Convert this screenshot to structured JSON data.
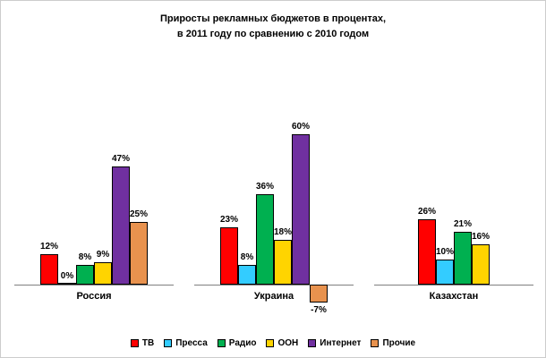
{
  "title": {
    "line1": "Приросты рекламных бюджетов в процентах,",
    "line2": "в 2011 году по сравнению с 2010 годом"
  },
  "chart_data": {
    "type": "bar",
    "title": "Приросты рекламных бюджетов в процентах, в 2011 году по сравнению с 2010 годом",
    "categories": [
      "Россия",
      "Украина",
      "Казахстан"
    ],
    "series": [
      {
        "name": "ТВ",
        "color": "#FF0000",
        "values": [
          12,
          23,
          26
        ]
      },
      {
        "name": "Пресса",
        "color": "#33CCFF",
        "values": [
          0,
          8,
          10
        ]
      },
      {
        "name": "Радио",
        "color": "#00B050",
        "values": [
          8,
          36,
          21
        ]
      },
      {
        "name": "ООН",
        "color": "#FFD400",
        "values": [
          9,
          18,
          16
        ]
      },
      {
        "name": "Интернет",
        "color": "#7030A0",
        "values": [
          47,
          60,
          null
        ]
      },
      {
        "name": "Прочие",
        "color": "#E8924E",
        "values": [
          25,
          -7,
          null
        ]
      }
    ],
    "value_suffix": "%",
    "xlabel": "",
    "ylabel": "",
    "ylim": [
      -10,
      65
    ],
    "grid": false,
    "legend_position": "bottom",
    "data_labels": true
  }
}
